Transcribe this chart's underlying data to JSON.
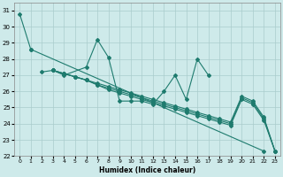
{
  "xlabel": "Humidex (Indice chaleur)",
  "bg_color": "#ceeaea",
  "grid_color": "#aacccc",
  "line_color": "#1e7b6e",
  "xlim": [
    -0.5,
    23.5
  ],
  "ylim": [
    22,
    31.5
  ],
  "yticks": [
    22,
    23,
    24,
    25,
    26,
    27,
    28,
    29,
    30,
    31
  ],
  "xticks": [
    0,
    1,
    2,
    3,
    4,
    5,
    6,
    7,
    8,
    9,
    10,
    11,
    12,
    13,
    14,
    15,
    16,
    17,
    18,
    19,
    20,
    21,
    22,
    23
  ],
  "line1_x": [
    0,
    1,
    22
  ],
  "line1_y": [
    30.8,
    28.6,
    22.3
  ],
  "line2_x": [
    2,
    3,
    4,
    6,
    7,
    8,
    9,
    10,
    11,
    12,
    13,
    14,
    15,
    16,
    17
  ],
  "line2_y": [
    27.2,
    27.3,
    27.0,
    27.5,
    29.2,
    28.1,
    25.4,
    25.4,
    25.4,
    25.2,
    26.0,
    27.0,
    25.5,
    28.0,
    27.0
  ],
  "para_x": [
    3,
    4,
    5,
    6,
    7,
    8,
    9,
    10,
    11,
    12,
    13,
    14,
    15,
    16,
    17,
    18,
    19,
    20,
    21,
    22,
    23
  ],
  "para1_y": [
    27.3,
    27.1,
    26.9,
    26.7,
    26.5,
    26.3,
    26.1,
    25.9,
    25.7,
    25.5,
    25.3,
    25.1,
    24.9,
    24.7,
    24.5,
    24.3,
    24.1,
    25.7,
    25.4,
    24.4,
    22.3
  ],
  "para2_y": [
    27.3,
    27.1,
    26.9,
    26.7,
    26.4,
    26.2,
    26.0,
    25.8,
    25.6,
    25.4,
    25.2,
    25.0,
    24.8,
    24.6,
    24.4,
    24.2,
    24.0,
    25.6,
    25.3,
    24.3,
    22.3
  ],
  "para3_y": [
    27.3,
    27.1,
    26.9,
    26.7,
    26.4,
    26.1,
    25.9,
    25.7,
    25.5,
    25.3,
    25.1,
    24.9,
    24.7,
    24.5,
    24.3,
    24.1,
    23.9,
    25.5,
    25.2,
    24.2,
    22.3
  ]
}
